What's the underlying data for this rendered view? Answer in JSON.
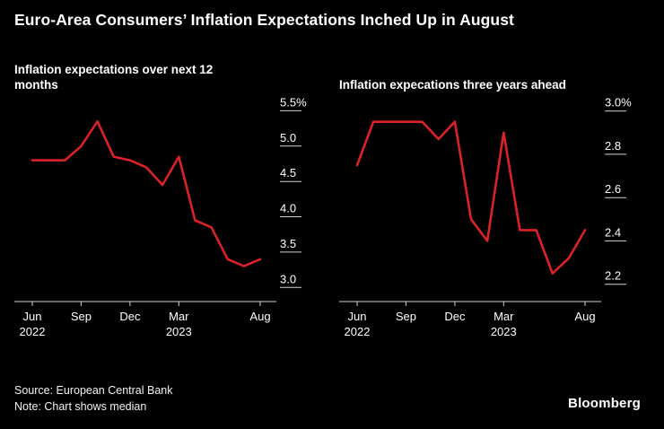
{
  "page": {
    "title": "Euro-Area Consumers’ Inflation Expectations Inched Up in August",
    "source_line1": "Source: European Central Bank",
    "source_line2": "Note: Chart shows median",
    "brand": "Bloomberg",
    "background_color": "#000000",
    "text_color": "#ffffff",
    "axis_color": "#d4d4d4",
    "line_color": "#dc2127"
  },
  "chart_data": [
    {
      "type": "line",
      "title": "Inflation expectations over next 12 months",
      "categories": [
        "Jun 2022",
        "Jul 2022",
        "Aug 2022",
        "Sep 2022",
        "Oct 2022",
        "Nov 2022",
        "Dec 2022",
        "Jan 2023",
        "Feb 2023",
        "Mar 2023",
        "Apr 2023",
        "May 2023",
        "Jun 2023",
        "Jul 2023",
        "Aug 2023"
      ],
      "values": [
        4.8,
        4.8,
        4.8,
        5.0,
        5.35,
        4.85,
        4.8,
        4.7,
        4.45,
        4.85,
        3.95,
        3.85,
        3.4,
        3.3,
        3.4
      ],
      "ylim": [
        2.8,
        5.62
      ],
      "y_ticks": [
        {
          "value": 5.5,
          "label": "5.5%"
        },
        {
          "value": 5.0,
          "label": "5.0"
        },
        {
          "value": 4.5,
          "label": "4.5"
        },
        {
          "value": 4.0,
          "label": "4.0"
        },
        {
          "value": 3.5,
          "label": "3.5"
        },
        {
          "value": 3.0,
          "label": "3.0"
        }
      ],
      "x_ticks": [
        {
          "index": 0,
          "label": "Jun",
          "sublabel": "2022"
        },
        {
          "index": 3,
          "label": "Sep"
        },
        {
          "index": 6,
          "label": "Dec"
        },
        {
          "index": 9,
          "label": "Mar",
          "sublabel": "2023"
        },
        {
          "index": 14,
          "label": "Aug"
        }
      ],
      "grid": false,
      "legend": "none",
      "y_axis_position": "right"
    },
    {
      "type": "line",
      "title": "Inflation expecations three years ahead",
      "categories": [
        "Jun 2022",
        "Jul 2022",
        "Aug 2022",
        "Sep 2022",
        "Oct 2022",
        "Nov 2022",
        "Dec 2022",
        "Jan 2023",
        "Feb 2023",
        "Mar 2023",
        "Apr 2023",
        "May 2023",
        "Jun 2023",
        "Jul 2023",
        "Aug 2023"
      ],
      "values": [
        2.75,
        2.95,
        2.95,
        2.95,
        2.95,
        2.87,
        2.95,
        2.5,
        2.4,
        2.9,
        2.45,
        2.45,
        2.25,
        2.32,
        2.45
      ],
      "ylim": [
        2.12,
        3.04
      ],
      "y_ticks": [
        {
          "value": 3.0,
          "label": "3.0%"
        },
        {
          "value": 2.8,
          "label": "2.8"
        },
        {
          "value": 2.6,
          "label": "2.6"
        },
        {
          "value": 2.4,
          "label": "2.4"
        },
        {
          "value": 2.2,
          "label": "2.2"
        }
      ],
      "x_ticks": [
        {
          "index": 0,
          "label": "Jun",
          "sublabel": "2022"
        },
        {
          "index": 3,
          "label": "Sep"
        },
        {
          "index": 6,
          "label": "Dec"
        },
        {
          "index": 9,
          "label": "Mar",
          "sublabel": "2023"
        },
        {
          "index": 14,
          "label": "Aug"
        }
      ],
      "grid": false,
      "legend": "none",
      "y_axis_position": "right"
    }
  ]
}
